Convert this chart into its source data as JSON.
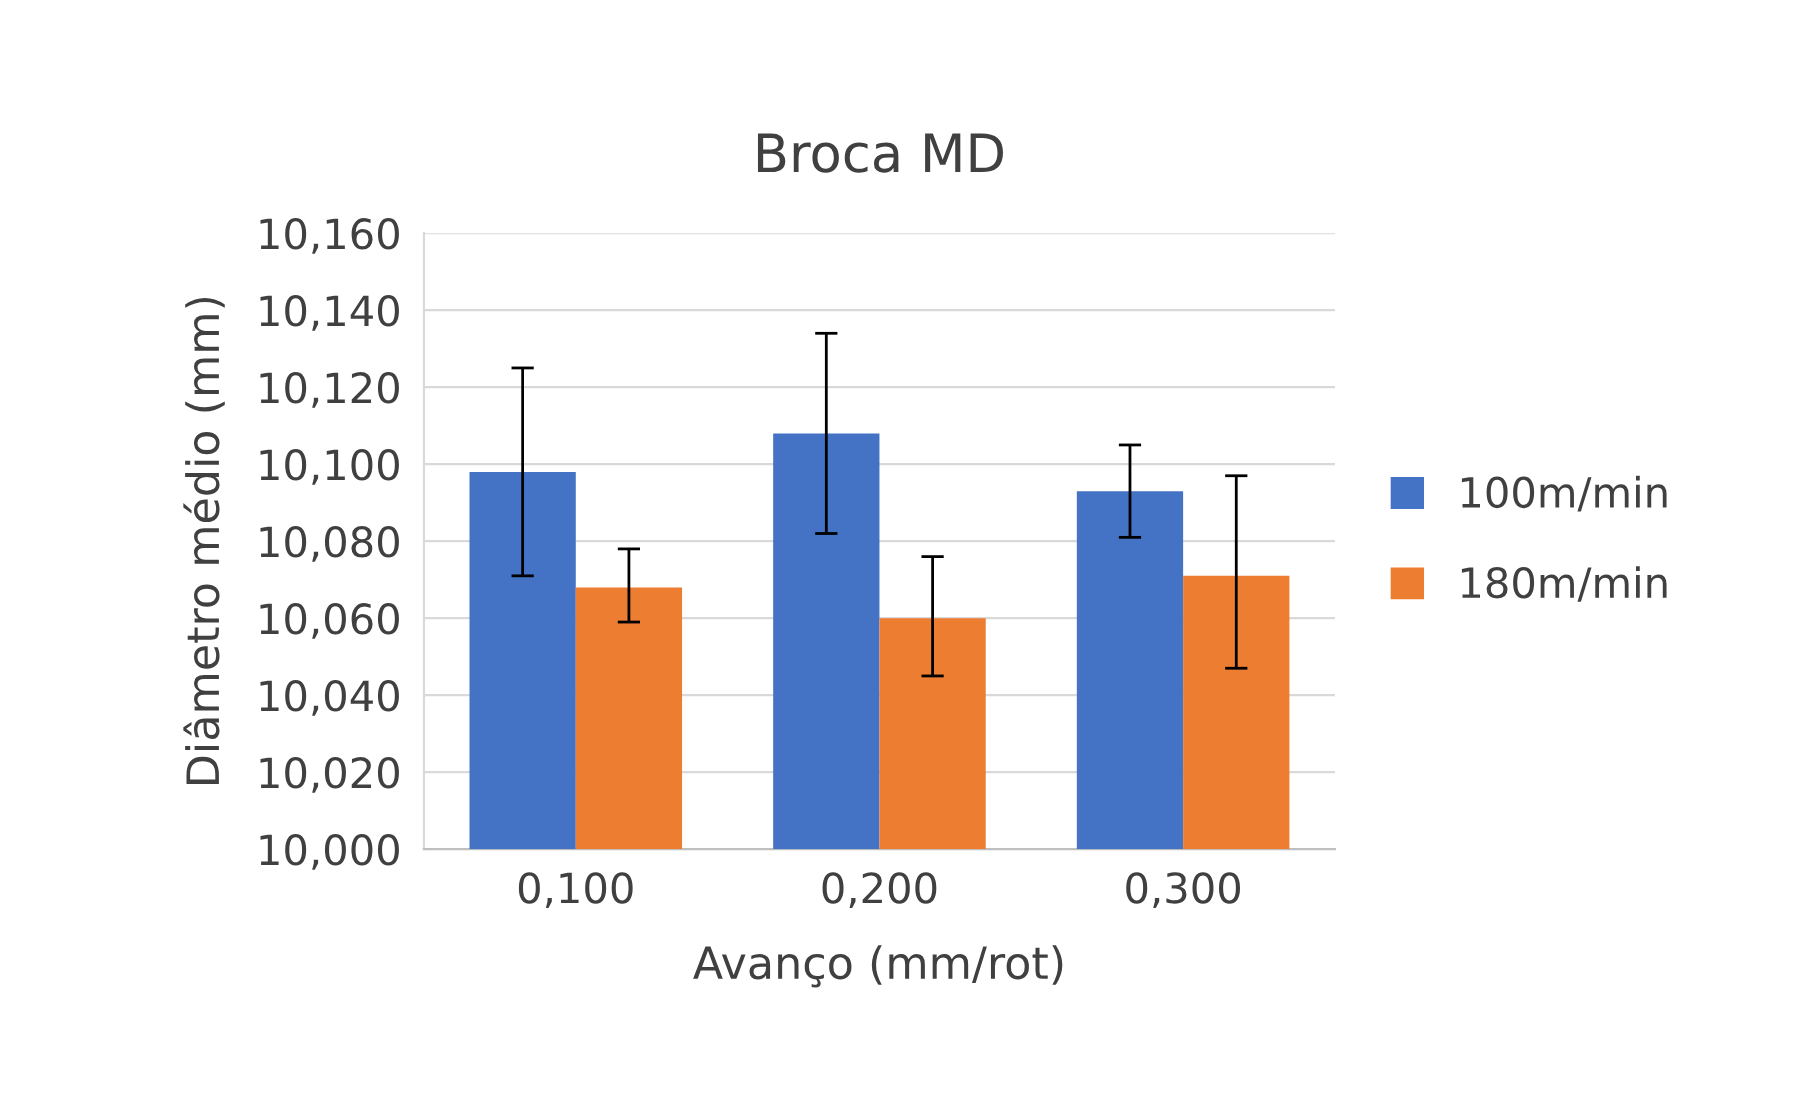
{
  "chart_data": {
    "type": "bar",
    "title": "Broca MD",
    "xlabel": "Avanço (mm/rot)",
    "ylabel": "Diâmetro médio (mm)",
    "categories": [
      "0,100",
      "0,200",
      "0,300"
    ],
    "series": [
      {
        "name": "100m/min",
        "color": "#4472c4",
        "values": [
          10.098,
          10.108,
          10.093
        ],
        "errors": [
          [
            10.071,
            10.125
          ],
          [
            10.082,
            10.134
          ],
          [
            10.081,
            10.105
          ]
        ]
      },
      {
        "name": "180m/min",
        "color": "#ed7d31",
        "values": [
          10.068,
          10.06,
          10.071
        ],
        "errors": [
          [
            10.059,
            10.078
          ],
          [
            10.045,
            10.076
          ],
          [
            10.047,
            10.097
          ]
        ]
      }
    ],
    "ylim": [
      10.0,
      10.16
    ],
    "yticks": [
      {
        "value": 10.0,
        "label": "10,000"
      },
      {
        "value": 10.02,
        "label": "10,020"
      },
      {
        "value": 10.04,
        "label": "10,040"
      },
      {
        "value": 10.06,
        "label": "10,060"
      },
      {
        "value": 10.08,
        "label": "10,080"
      },
      {
        "value": 10.1,
        "label": "10,100"
      },
      {
        "value": 10.12,
        "label": "10,120"
      },
      {
        "value": 10.14,
        "label": "10,140"
      },
      {
        "value": 10.16,
        "label": "10,160"
      }
    ],
    "grid": "y",
    "legend": "right"
  }
}
